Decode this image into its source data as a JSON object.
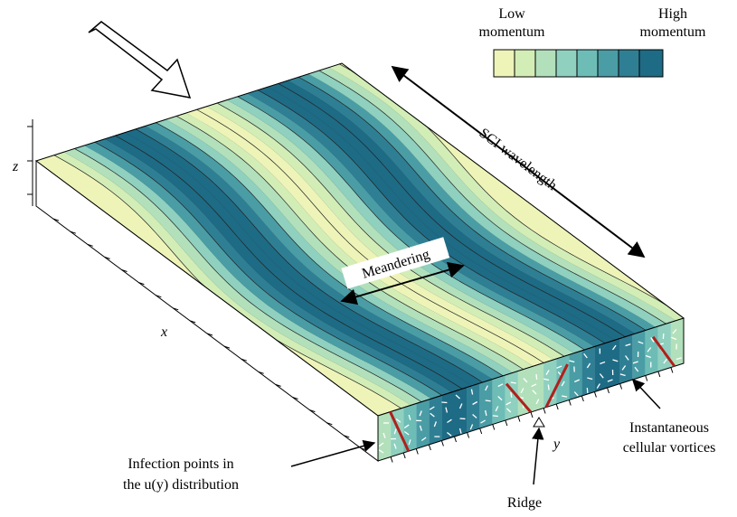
{
  "colorbar": {
    "low_label": [
      "Low",
      "momentum"
    ],
    "high_label": [
      "High",
      "momentum"
    ]
  },
  "axes": {
    "z": "z",
    "x": "x",
    "y": "y"
  },
  "annotations": {
    "wavelength": "SCI wavelength",
    "meandering": "Meandering",
    "inflection": [
      "Infection points in",
      "the u(y) distribution"
    ],
    "ridge": "Ridge",
    "vortices": [
      "Instantaneous",
      "cellular vortices"
    ]
  }
}
